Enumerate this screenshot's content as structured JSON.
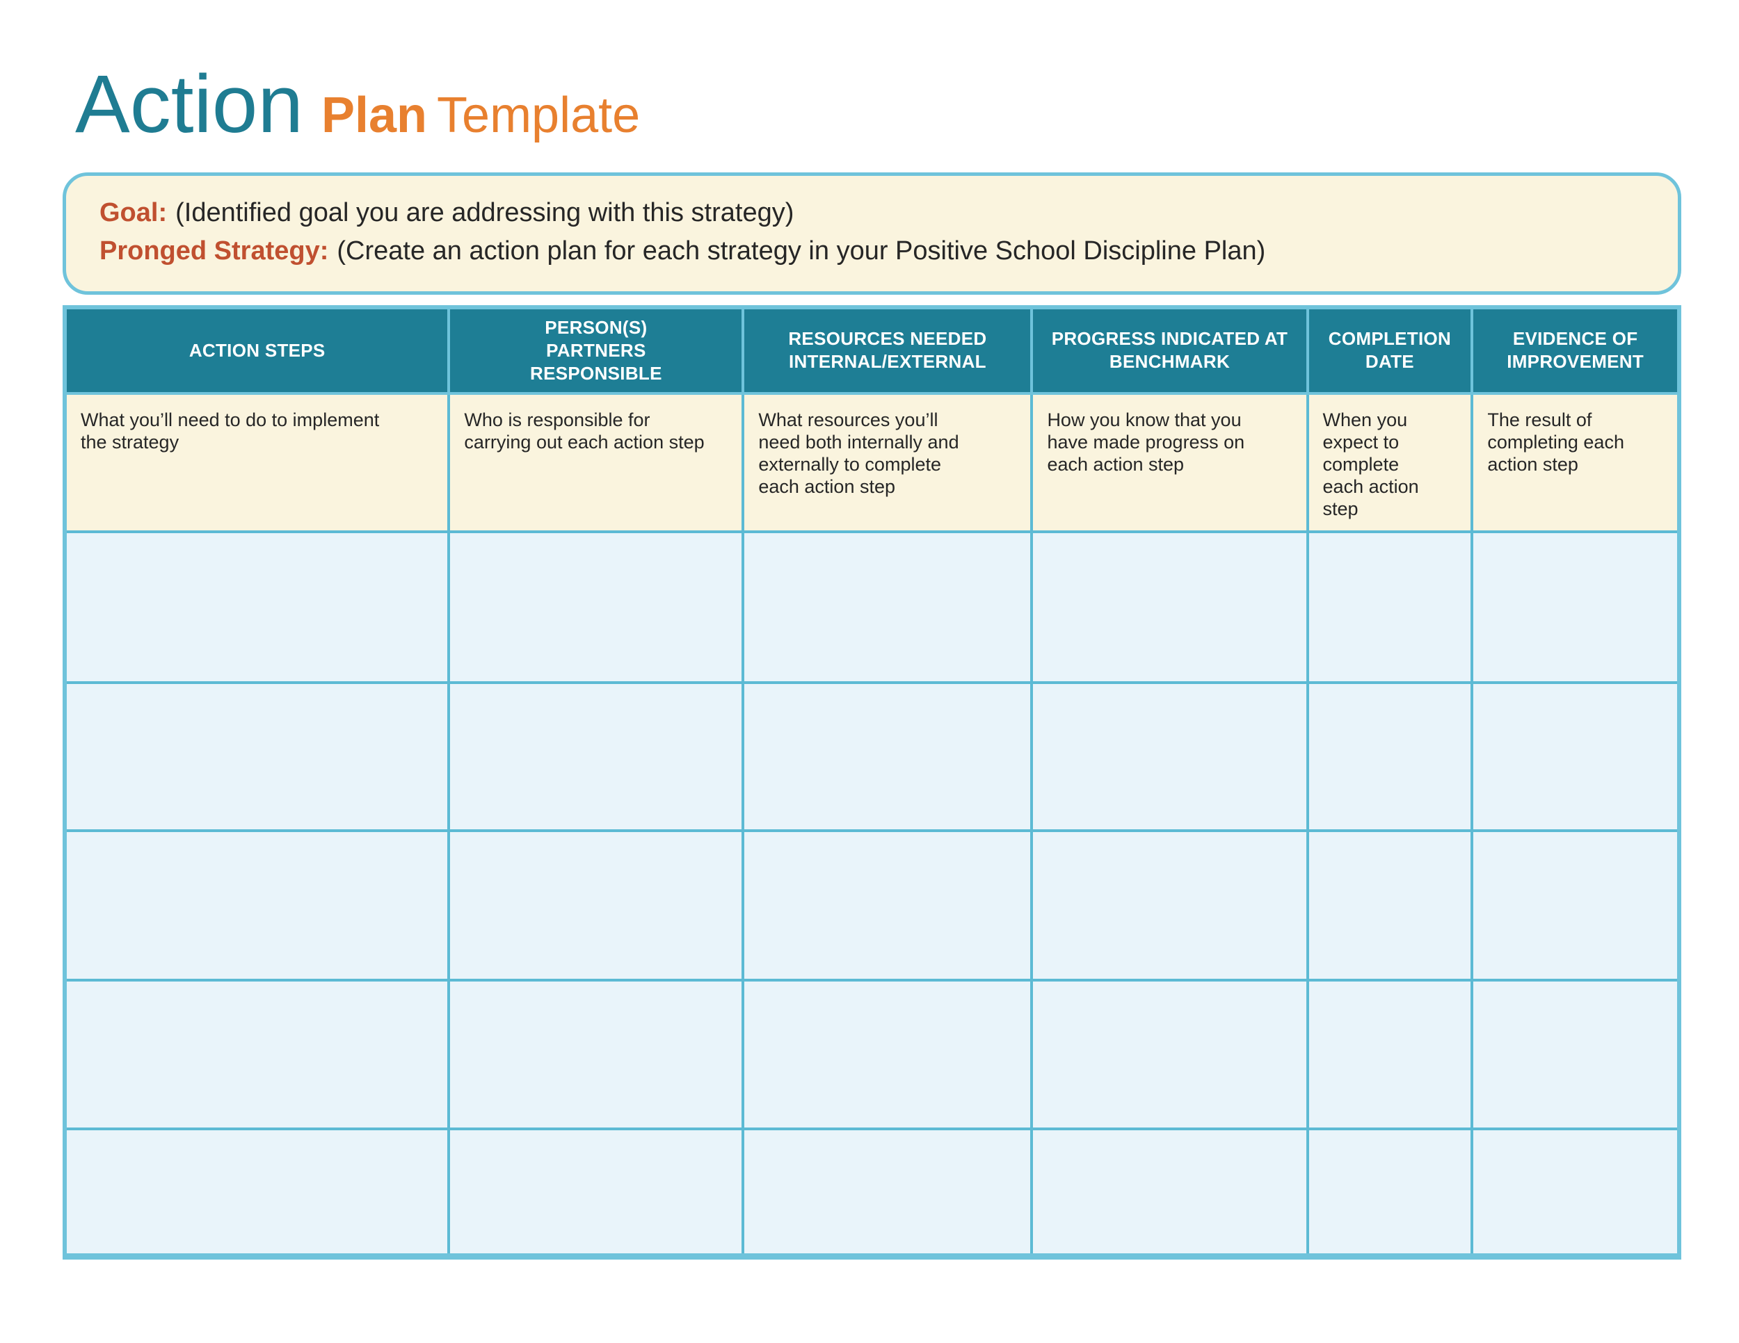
{
  "title": {
    "primary": "Action",
    "secondary_bold": "Plan",
    "secondary_regular": "Template"
  },
  "goal_box": {
    "goal_label": "Goal:",
    "goal_text": "(Identified goal you are addressing with this strategy)",
    "strategy_label": "Pronged Strategy:",
    "strategy_text": "(Create an action plan for each strategy in your Positive School Discipline Plan)"
  },
  "table": {
    "headers": [
      "ACTION STEPS",
      "PERSON(S)\nPARTNERS\nRESPONSIBLE",
      "RESOURCES NEEDED\nINTERNAL/EXTERNAL",
      "PROGRESS INDICATED AT\nBENCHMARK",
      "COMPLETION\nDATE",
      "EVIDENCE OF\nIMPROVEMENT"
    ],
    "descriptions": [
      "What you’ll need to do to implement\nthe strategy",
      "Who is responsible for\ncarrying out each action step",
      "What resources you’ll\nneed both internally and\nexternally to complete\neach action step",
      "How you know that you\nhave made progress on\neach action step",
      "When you\nexpect to\ncomplete\neach action\nstep",
      "The result of\ncompleting each\naction step"
    ],
    "empty_row_count": 5,
    "empty_column_count": 6
  },
  "colors": {
    "teal_header": "#1E7E95",
    "title_teal": "#1F7C92",
    "accent_orange": "#E8802F",
    "label_rust": "#C05030",
    "cream": "#FAF4DE",
    "cell_blue": "#E9F4FA",
    "border_blue": "#6FC3DB",
    "line_blue": "#5CBAD4",
    "text_dark": "#262626"
  }
}
